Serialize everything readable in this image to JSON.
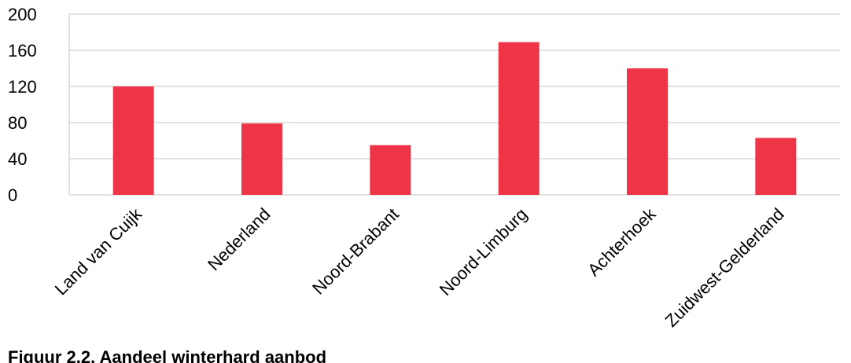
{
  "chart_data": {
    "type": "bar",
    "categories": [
      "Land van Cuijk",
      "Nederland",
      "Noord-Brabant",
      "Noord-Limburg",
      "Achterhoek",
      "Zuidwest-Gelderland"
    ],
    "values": [
      120,
      79,
      55,
      169,
      140,
      63
    ],
    "ylim": [
      0,
      200
    ],
    "yticks": [
      0,
      40,
      80,
      120,
      160,
      200
    ],
    "grid": true,
    "bar_color": "#ee3447",
    "grid_color": "#d9d9d9"
  },
  "caption": "Figuur 2.2. Aandeel winterhard aanbod"
}
